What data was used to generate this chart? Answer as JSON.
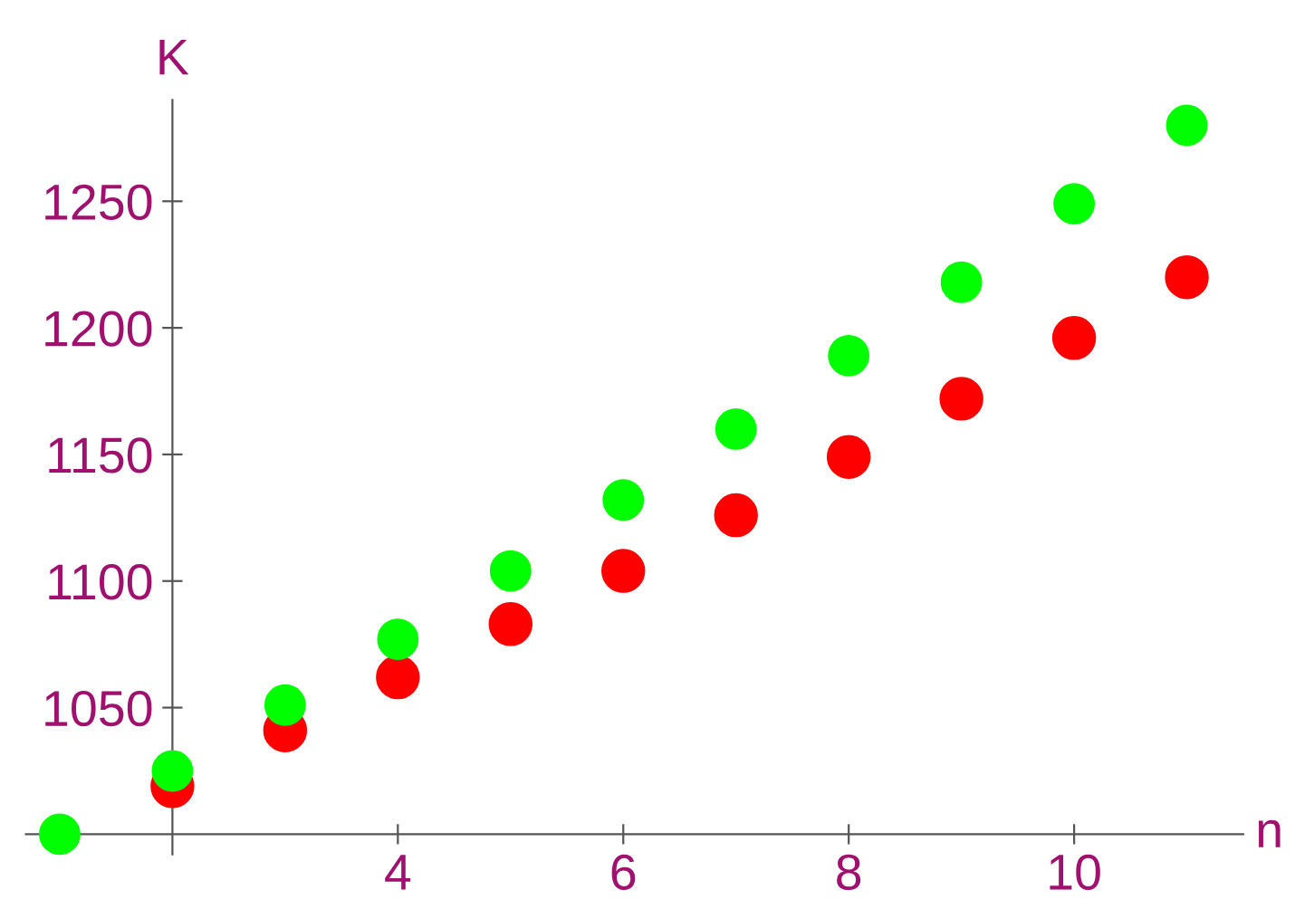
{
  "chart_data": {
    "type": "scatter",
    "xlabel": "n",
    "ylabel": "K",
    "x": [
      1,
      2,
      3,
      4,
      5,
      6,
      7,
      8,
      9,
      10,
      11
    ],
    "series": [
      {
        "color": "#ff0000",
        "values": [
          null,
          1019,
          1041,
          1062,
          1083,
          1104,
          1126,
          1149,
          1172,
          1196,
          1220
        ]
      },
      {
        "color": "#00ff00",
        "values": [
          1000,
          1025,
          1051,
          1077,
          1104,
          1132,
          1160,
          1189,
          1218,
          1249,
          1280
        ]
      }
    ],
    "xlim": [
      0.7,
      11.5
    ],
    "ylim": [
      992,
      1290
    ],
    "xticks": [
      4,
      6,
      8,
      10
    ],
    "yticks": [
      1050,
      1100,
      1150,
      1200,
      1250
    ],
    "marker": "circle",
    "grid": false,
    "legend": false
  }
}
